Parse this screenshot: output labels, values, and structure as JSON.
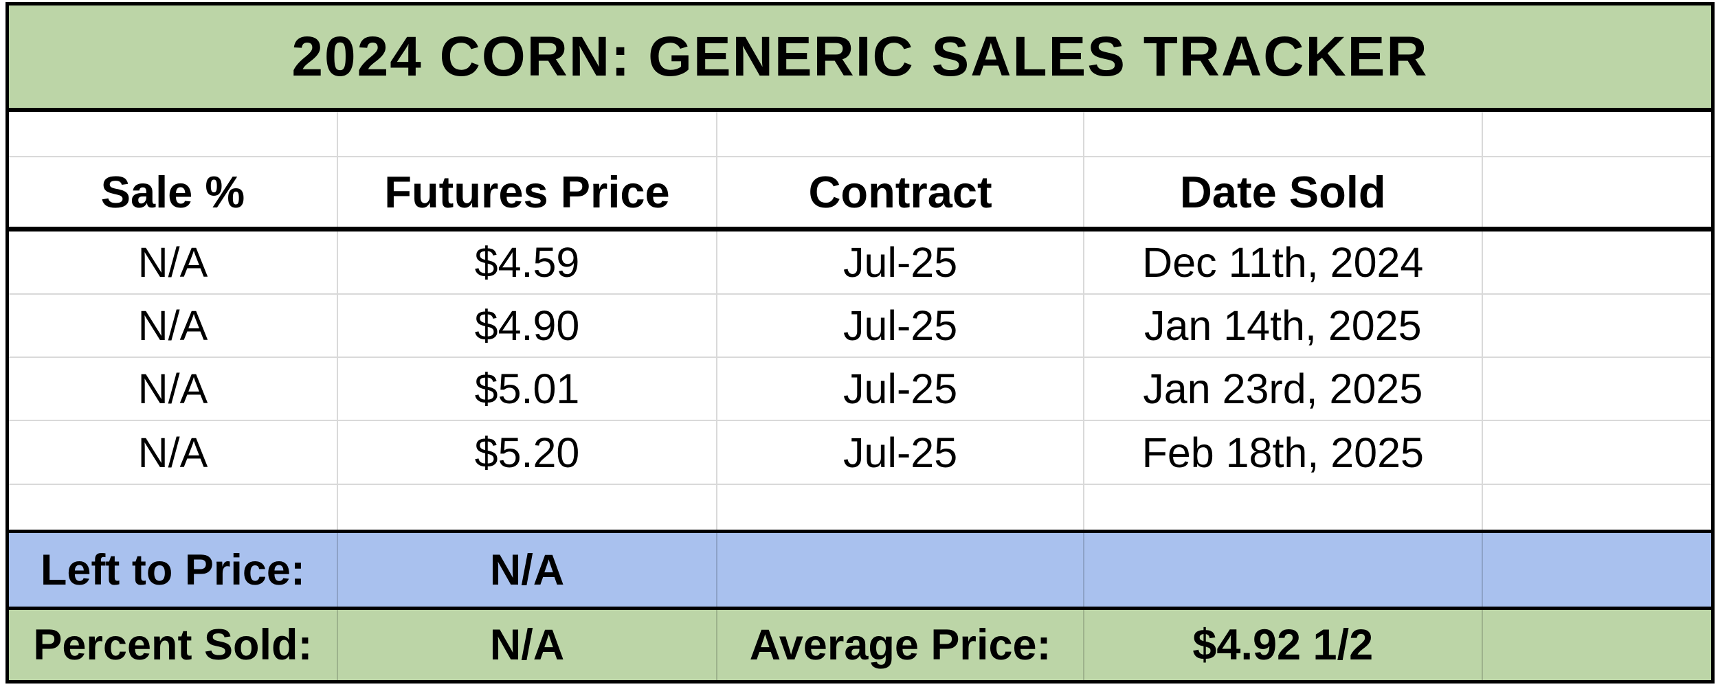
{
  "title": "2024 CORN: GENERIC SALES TRACKER",
  "columns": [
    "Sale %",
    "Futures Price",
    "Contract",
    "Date Sold"
  ],
  "rows": [
    [
      "N/A",
      "$4.59",
      "Jul-25",
      "Dec 11th, 2024"
    ],
    [
      "N/A",
      "$4.90",
      "Jul-25",
      "Jan 14th, 2025"
    ],
    [
      "N/A",
      "$5.01",
      "Jul-25",
      "Jan 23rd, 2025"
    ],
    [
      "N/A",
      "$5.20",
      "Jul-25",
      "Feb 18th, 2025"
    ]
  ],
  "summary": {
    "left_to_price": {
      "label": "Left to Price:",
      "value": "N/A"
    },
    "percent_sold": {
      "label": "Percent Sold:",
      "value": "N/A"
    },
    "average_price": {
      "label": "Average Price:",
      "value": "$4.92 1/2"
    }
  },
  "colors": {
    "title_band_green": "#bcd5a7",
    "summary_band_blue": "#a9c1ee",
    "gridline_gray": "#d9d9d9",
    "table_border_black": "#000000"
  }
}
